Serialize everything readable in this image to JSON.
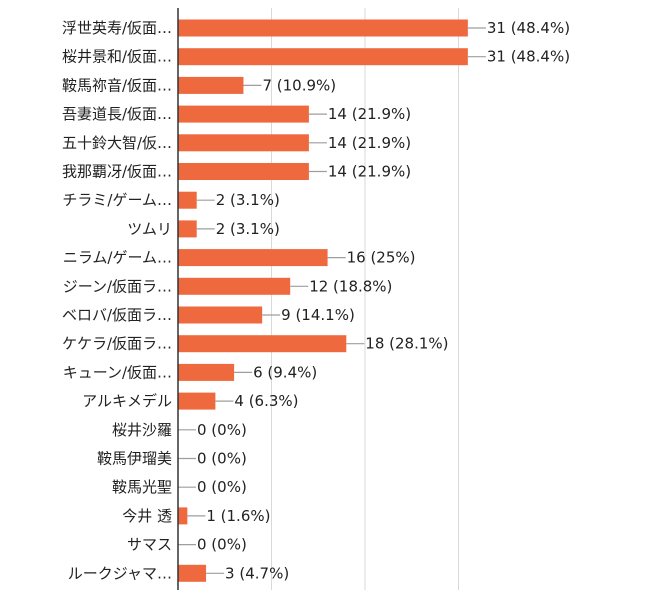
{
  "chart_data": {
    "type": "bar",
    "orientation": "horizontal",
    "title": "",
    "xlabel": "",
    "ylabel": "",
    "xlim": [
      0,
      32
    ],
    "grid": true,
    "legend": "none",
    "bar_color": "#EE6A3E",
    "categories": [
      "浮世英寿/仮面…",
      "桜井景和/仮面…",
      "鞍馬祢音/仮面…",
      "吾妻道長/仮面…",
      "五十鈴大智/仮…",
      "我那覇冴/仮面…",
      "チラミ/ゲーム…",
      "ツムリ",
      "ニラム/ゲーム…",
      "ジーン/仮面ラ…",
      "ベロバ/仮面ラ…",
      "ケケラ/仮面ラ…",
      "キューン/仮面…",
      "アルキメデル",
      "桜井沙羅",
      "鞍馬伊瑠美",
      "鞍馬光聖",
      "今井 透",
      "サマス",
      "ルークジャマ…"
    ],
    "values": [
      31,
      31,
      7,
      14,
      14,
      14,
      2,
      2,
      16,
      12,
      9,
      18,
      6,
      4,
      0,
      0,
      0,
      1,
      0,
      3
    ],
    "value_labels": [
      "31 (48.4%)",
      "31 (48.4%)",
      "7 (10.9%)",
      "14 (21.9%)",
      "14 (21.9%)",
      "14 (21.9%)",
      "2 (3.1%)",
      "2 (3.1%)",
      "16 (25%)",
      "12 (18.8%)",
      "9 (14.1%)",
      "18 (28.1%)",
      "6 (9.4%)",
      "4 (6.3%)",
      "0 (0%)",
      "0 (0%)",
      "0 (0%)",
      "1 (1.6%)",
      "0 (0%)",
      "3 (4.7%)"
    ]
  }
}
